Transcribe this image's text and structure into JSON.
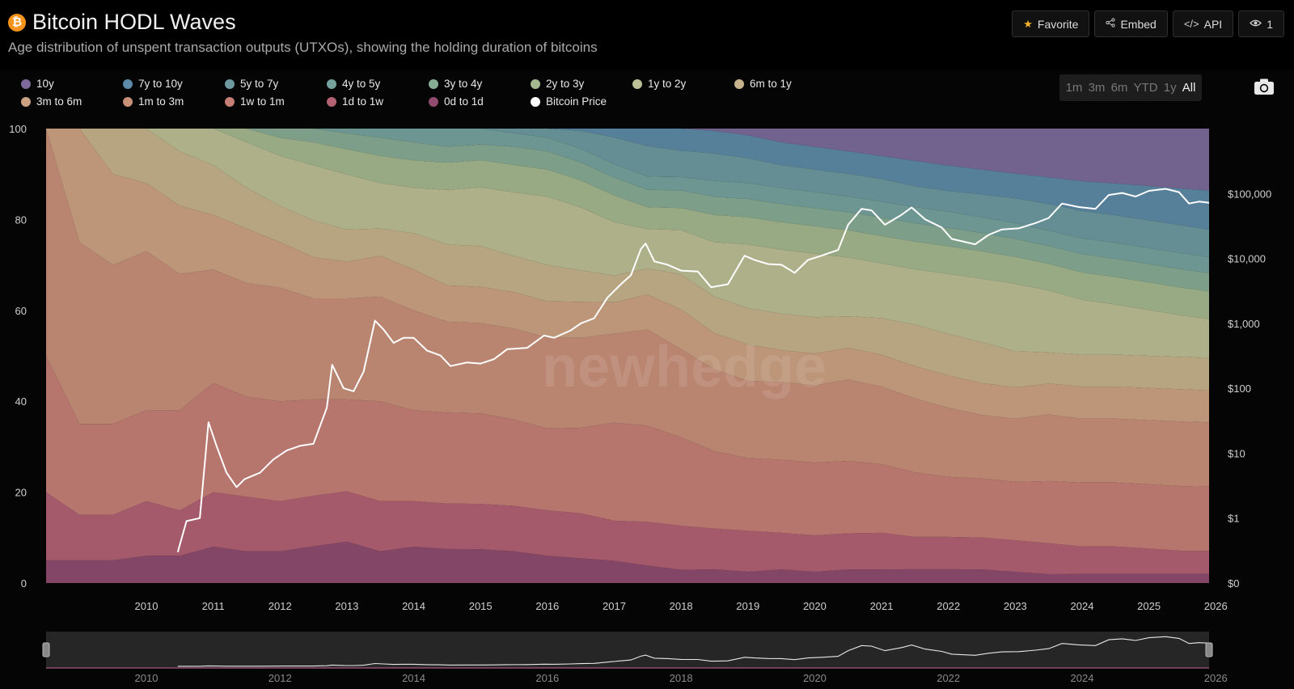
{
  "header": {
    "logo_glyph": "₿",
    "title": "Bitcoin HODL Waves",
    "subtitle": "Age distribution of unspent transaction outputs (UTXOs), showing the holding duration of bitcoins"
  },
  "toolbar": {
    "favorite_label": "Favorite",
    "embed_label": "Embed",
    "api_label": "API",
    "views_count": "1"
  },
  "ranges": [
    "1m",
    "3m",
    "6m",
    "YTD",
    "1y",
    "All"
  ],
  "active_range": "All",
  "watermark": "newhedge",
  "colors": {
    "background": "#000000",
    "accent_orange": "#f7931a",
    "price_line": "#ffffff"
  },
  "chart_data": {
    "type": "area",
    "stacked_percent": true,
    "title": "Bitcoin HODL Waves",
    "ylim": [
      0,
      100
    ],
    "y_ticks": [
      "0",
      "20",
      "40",
      "60",
      "80",
      "100"
    ],
    "y2_scale": "log",
    "y2_ticks": [
      "$0",
      "$1",
      "$10",
      "$100",
      "$1,000",
      "$10,000",
      "$100,000"
    ],
    "x_ticks": [
      "2010",
      "2011",
      "2012",
      "2013",
      "2014",
      "2015",
      "2016",
      "2017",
      "2018",
      "2019",
      "2020",
      "2021",
      "2022",
      "2023",
      "2024",
      "2025",
      "2026"
    ],
    "navigator_ticks": [
      "2010",
      "2012",
      "2014",
      "2016",
      "2018",
      "2020",
      "2022",
      "2024",
      "2026"
    ],
    "x": [
      2009.0,
      2009.5,
      2010.0,
      2010.5,
      2011.0,
      2011.5,
      2012.0,
      2012.5,
      2013.0,
      2013.5,
      2014.0,
      2014.5,
      2015.0,
      2015.5,
      2016.0,
      2016.5,
      2017.0,
      2017.5,
      2018.0,
      2018.5,
      2019.0,
      2019.5,
      2020.0,
      2020.5,
      2021.0,
      2021.5,
      2022.0,
      2022.5,
      2023.0,
      2023.5,
      2024.0,
      2024.5,
      2025.0,
      2025.5,
      2026.0,
      2026.4
    ],
    "series": [
      {
        "name": "10y",
        "color": "#7c6a9a",
        "values": [
          0,
          0,
          0,
          0,
          0,
          0,
          0,
          0,
          0,
          0,
          0,
          0,
          0,
          0,
          0,
          0,
          0,
          0,
          0,
          0,
          0.5,
          1.5,
          3,
          4,
          5,
          6,
          7,
          8,
          9,
          10,
          11,
          11.5,
          12,
          12.5,
          13,
          13.5
        ]
      },
      {
        "name": "7y to 10y",
        "color": "#5d8aa6",
        "values": [
          0,
          0,
          0,
          0,
          0,
          0,
          0,
          0,
          0,
          0,
          0,
          0,
          0,
          0,
          0,
          0,
          0.5,
          2,
          4,
          5,
          5,
          5,
          5,
          5,
          5,
          5,
          5.5,
          5.5,
          5.5,
          5.5,
          6,
          6.5,
          7,
          7.5,
          8,
          8.5
        ]
      },
      {
        "name": "5y to 7y",
        "color": "#6c9aa0",
        "values": [
          0,
          0,
          0,
          0,
          0,
          0,
          0,
          0,
          0,
          0,
          0,
          0,
          0,
          0,
          1,
          2,
          4,
          6,
          7,
          6,
          6,
          5.5,
          5,
          5,
          5,
          5,
          4.5,
          4.5,
          5,
          5.5,
          6,
          6,
          6,
          6,
          6,
          6
        ]
      },
      {
        "name": "4y to 5y",
        "color": "#76a29d",
        "values": [
          0,
          0,
          0,
          0,
          0,
          0,
          0,
          0,
          0,
          1,
          2,
          3,
          4,
          3.5,
          3,
          3,
          3,
          3,
          3,
          3,
          3.5,
          3.5,
          3.5,
          3.5,
          3.5,
          3.5,
          3.5,
          3.5,
          3.5,
          3.5,
          3.5,
          3.5,
          3.5,
          3.5,
          3.5,
          3.5
        ]
      },
      {
        "name": "3y to 4y",
        "color": "#88ad95",
        "values": [
          0,
          0,
          0,
          0,
          0,
          0,
          0,
          2,
          3,
          3.5,
          4,
          4,
          3.5,
          3.5,
          4,
          4,
          4,
          4,
          4,
          4,
          4,
          4,
          4,
          4,
          4,
          4,
          4,
          4,
          4,
          4,
          4,
          4,
          4,
          4,
          4,
          4
        ]
      },
      {
        "name": "2y to 3y",
        "color": "#a5b88f",
        "values": [
          0,
          0,
          0,
          0,
          0,
          0,
          3,
          4,
          5,
          5.5,
          6,
          6,
          6,
          6,
          6,
          6,
          6,
          6,
          5,
          5,
          6,
          6,
          6,
          6,
          6,
          6,
          6,
          6,
          6,
          6,
          6,
          6,
          6,
          6,
          6,
          6
        ]
      },
      {
        "name": "1y to 2y",
        "color": "#bdbf96",
        "values": [
          0,
          0,
          0,
          0,
          5,
          8,
          10,
          11,
          12,
          12,
          10,
          10,
          12,
          13,
          14,
          15,
          14,
          12,
          9,
          10,
          12,
          14,
          14,
          14,
          13,
          12,
          12,
          13,
          14,
          15,
          14,
          12,
          11,
          10,
          9,
          8.5
        ]
      },
      {
        "name": "6m to 1y",
        "color": "#c6b38b",
        "values": [
          0,
          0,
          10,
          12,
          12,
          11,
          9,
          8,
          8,
          7,
          6,
          8,
          9,
          9,
          8,
          8,
          7,
          6,
          6,
          8,
          8,
          8,
          8,
          8,
          7,
          8,
          9,
          9,
          9,
          8,
          7,
          7,
          7,
          7,
          7,
          7
        ]
      },
      {
        "name": "3m to 6m",
        "color": "#cda283",
        "values": [
          0,
          25,
          20,
          15,
          15,
          12,
          12,
          10,
          9,
          8,
          9,
          9,
          8,
          8,
          8,
          8,
          8,
          7,
          8,
          9,
          8,
          8,
          7,
          7,
          7,
          7,
          7,
          7,
          7,
          7,
          7,
          7,
          7,
          7,
          7,
          7
        ]
      },
      {
        "name": "1m to 3m",
        "color": "#c99079",
        "values": [
          50,
          40,
          35,
          35,
          30,
          25,
          25,
          25,
          22,
          22,
          23,
          22,
          20,
          20,
          20,
          20,
          20,
          20,
          22,
          20,
          18,
          17,
          17,
          17,
          18,
          17,
          16,
          15,
          14,
          14,
          15,
          14,
          14,
          14,
          14,
          14
        ]
      },
      {
        "name": "1w to 1m",
        "color": "#c67f76",
        "values": [
          30,
          20,
          20,
          20,
          22,
          24,
          22,
          22,
          21,
          20,
          22,
          20,
          20,
          20,
          19,
          18,
          19,
          22,
          22,
          20,
          17,
          16,
          16,
          16,
          16,
          15,
          14,
          13,
          13,
          13,
          14,
          14,
          14,
          14,
          14,
          14
        ]
      },
      {
        "name": "1d to 1w",
        "color": "#b36274",
        "values": [
          15,
          10,
          10,
          12,
          10,
          12,
          12,
          11,
          11,
          11,
          11,
          10,
          10,
          10,
          10,
          10,
          10,
          9,
          10,
          10,
          9,
          9,
          8,
          8,
          8,
          8,
          7,
          7,
          7,
          7,
          7,
          6,
          6,
          5.5,
          5,
          5
        ]
      },
      {
        "name": "0d to 1d",
        "color": "#8f4c6f",
        "values": [
          5,
          5,
          5,
          6,
          6,
          8,
          7,
          7,
          8,
          9,
          7,
          8,
          7.5,
          7.5,
          7,
          6,
          5.5,
          5,
          4,
          3,
          3,
          2.5,
          3,
          2.5,
          3,
          3,
          3,
          3,
          3,
          2.5,
          2,
          2,
          2,
          2,
          2,
          2
        ]
      }
    ],
    "price_series": {
      "name": "Bitcoin Price",
      "color": "#ffffff",
      "x": [
        2010.97,
        2011.1,
        2011.3,
        2011.43,
        2011.55,
        2011.7,
        2011.85,
        2011.97,
        2012.2,
        2012.4,
        2012.6,
        2012.8,
        2013.0,
        2013.2,
        2013.28,
        2013.45,
        2013.6,
        2013.75,
        2013.92,
        2014.05,
        2014.2,
        2014.35,
        2014.5,
        2014.7,
        2014.9,
        2015.05,
        2015.3,
        2015.5,
        2015.7,
        2015.9,
        2016.2,
        2016.45,
        2016.6,
        2016.85,
        2017.0,
        2017.2,
        2017.4,
        2017.6,
        2017.75,
        2017.9,
        2017.97,
        2018.1,
        2018.3,
        2018.5,
        2018.75,
        2018.95,
        2019.2,
        2019.45,
        2019.6,
        2019.8,
        2020.0,
        2020.2,
        2020.4,
        2020.6,
        2020.85,
        2021.0,
        2021.2,
        2021.35,
        2021.55,
        2021.8,
        2021.95,
        2022.15,
        2022.4,
        2022.55,
        2022.9,
        2023.1,
        2023.3,
        2023.55,
        2023.8,
        2024.0,
        2024.2,
        2024.45,
        2024.7,
        2024.9,
        2025.1,
        2025.3,
        2025.5,
        2025.75,
        2025.95,
        2026.1,
        2026.25,
        2026.4
      ],
      "values": [
        0.3,
        0.9,
        1.0,
        30,
        13,
        5,
        3,
        4,
        5,
        8,
        11,
        13,
        14,
        50,
        230,
        100,
        90,
        180,
        1100,
        800,
        500,
        600,
        600,
        380,
        320,
        220,
        250,
        240,
        280,
        400,
        420,
        650,
        600,
        780,
        1000,
        1200,
        2500,
        4000,
        5500,
        14000,
        17000,
        9000,
        8000,
        6500,
        6300,
        3600,
        4000,
        11000,
        9500,
        8200,
        8000,
        6000,
        9500,
        11000,
        13500,
        33000,
        58000,
        55000,
        33000,
        47000,
        61000,
        40000,
        30000,
        20000,
        16500,
        23000,
        28000,
        29000,
        35000,
        42000,
        70000,
        62000,
        58000,
        95000,
        102000,
        90000,
        110000,
        118000,
        105000,
        70000,
        75000,
        72000
      ]
    }
  }
}
